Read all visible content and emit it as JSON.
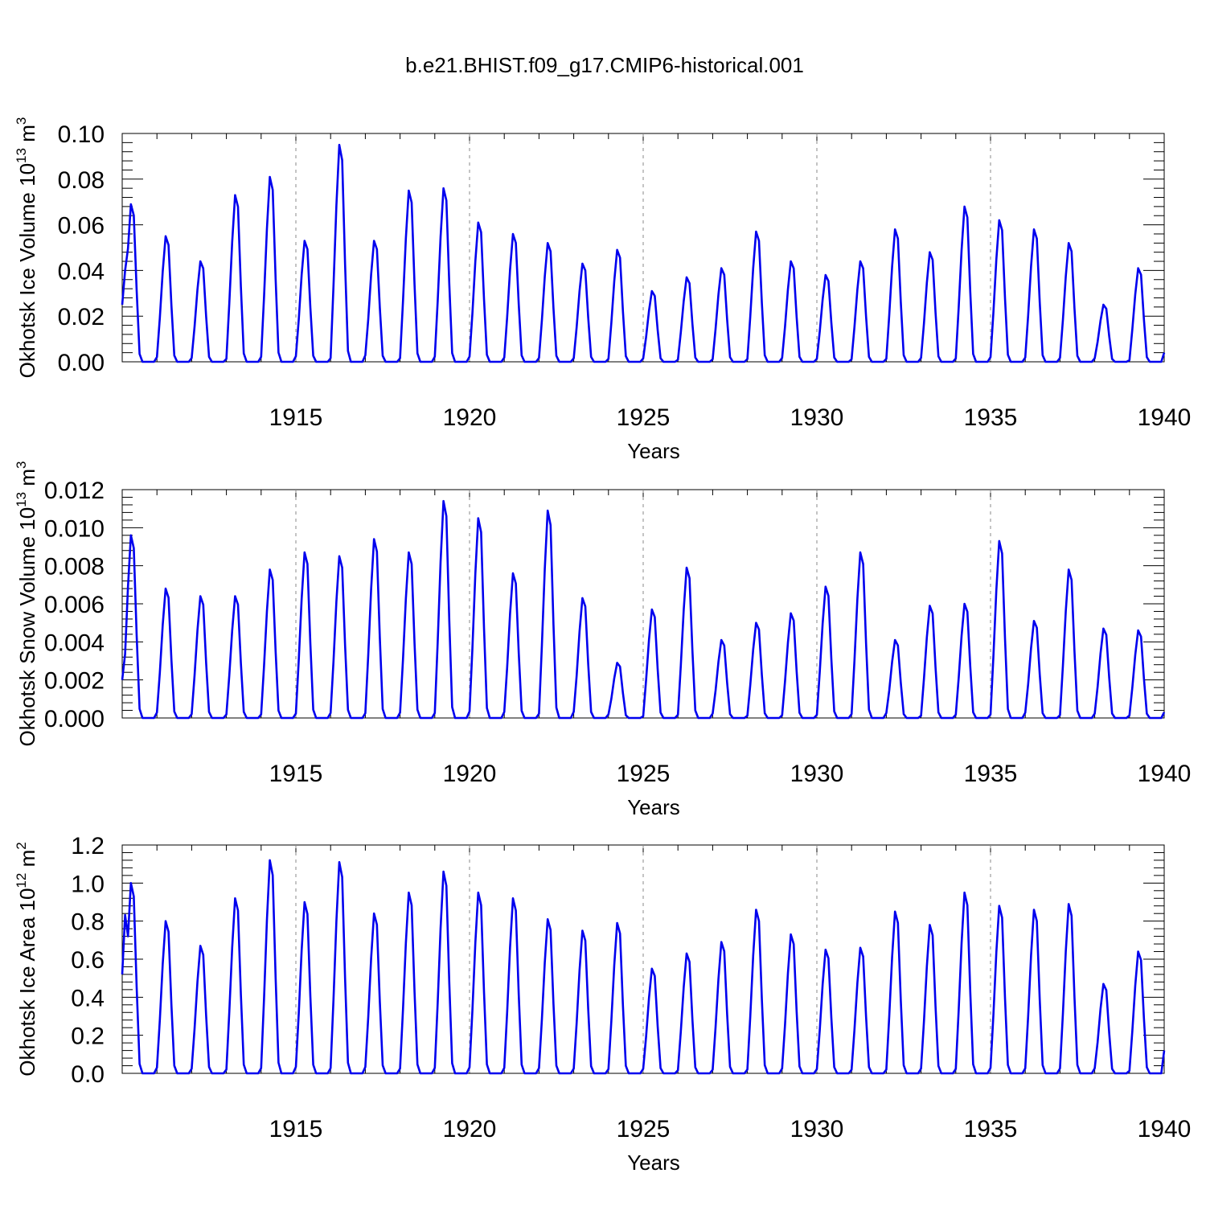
{
  "title": "b.e21.BHIST.f09_g17.CMIP6-historical.001",
  "colors": {
    "series": "#0000ee",
    "axis": "#000000",
    "grid": "#888888"
  },
  "chart_data": [
    {
      "type": "line",
      "panel": "ice-volume",
      "ylabel_main": "Okhotsk Ice Volume 10",
      "ylabel_exp": "13",
      "ylabel_unit": " m",
      "ylabel_unit_exp": "3",
      "xlabel": "Years",
      "xlim": [
        1910,
        1940
      ],
      "ylim": [
        0,
        0.1
      ],
      "yticks": [
        0,
        0.02,
        0.04,
        0.06,
        0.08,
        0.1
      ],
      "yticklabels": [
        "0.00",
        "0.02",
        "0.04",
        "0.06",
        "0.08",
        "0.10"
      ],
      "xticks": [
        1915,
        1920,
        1925,
        1930,
        1935,
        1940
      ],
      "xticklabels": [
        "1915",
        "1920",
        "1925",
        "1930",
        "1935",
        "1940"
      ],
      "grid": "vertical dashed at major x ticks",
      "series": [
        {
          "name": "Okhotsk Ice Volume",
          "peaks": [
            0.069,
            0.055,
            0.044,
            0.073,
            0.081,
            0.053,
            0.095,
            0.053,
            0.075,
            0.076,
            0.061,
            0.056,
            0.052,
            0.043,
            0.049,
            0.031,
            0.037,
            0.041,
            0.057,
            0.044,
            0.038,
            0.044,
            0.058,
            0.048,
            0.068,
            0.062,
            0.058,
            0.052,
            0.025,
            0.041
          ],
          "start_value": 0.025,
          "end_value": 0.004
        }
      ]
    },
    {
      "type": "line",
      "panel": "snow-volume",
      "ylabel_main": "Okhotsk Snow Volume 10",
      "ylabel_exp": "13",
      "ylabel_unit": " m",
      "ylabel_unit_exp": "3",
      "xlabel": "Years",
      "xlim": [
        1910,
        1940
      ],
      "ylim": [
        0,
        0.012
      ],
      "yticks": [
        0,
        0.002,
        0.004,
        0.006,
        0.008,
        0.01,
        0.012
      ],
      "yticklabels": [
        "0.000",
        "0.002",
        "0.004",
        "0.006",
        "0.008",
        "0.010",
        "0.012"
      ],
      "xticks": [
        1915,
        1920,
        1925,
        1930,
        1935,
        1940
      ],
      "xticklabels": [
        "1915",
        "1920",
        "1925",
        "1930",
        "1935",
        "1940"
      ],
      "grid": "vertical dashed at major x ticks",
      "series": [
        {
          "name": "Okhotsk Snow Volume",
          "peaks": [
            0.0096,
            0.0068,
            0.0064,
            0.0064,
            0.0078,
            0.0087,
            0.0085,
            0.0094,
            0.0087,
            0.0114,
            0.0105,
            0.0076,
            0.0109,
            0.0063,
            0.0029,
            0.0057,
            0.0079,
            0.0041,
            0.005,
            0.0055,
            0.0069,
            0.0087,
            0.0041,
            0.0059,
            0.006,
            0.0093,
            0.0051,
            0.0078,
            0.0047,
            0.0046
          ],
          "start_value": 0.002,
          "end_value": 0.0003
        }
      ]
    },
    {
      "type": "line",
      "panel": "ice-area",
      "ylabel_main": "Okhotsk Ice Area 10",
      "ylabel_exp": "12",
      "ylabel_unit": " m",
      "ylabel_unit_exp": "2",
      "xlabel": "Years",
      "xlim": [
        1910,
        1940
      ],
      "ylim": [
        0,
        1.2
      ],
      "yticks": [
        0,
        0.2,
        0.4,
        0.6,
        0.8,
        1.0,
        1.2
      ],
      "yticklabels": [
        "0.0",
        "0.2",
        "0.4",
        "0.6",
        "0.8",
        "1.0",
        "1.2"
      ],
      "xticks": [
        1915,
        1920,
        1925,
        1930,
        1935,
        1940
      ],
      "xticklabels": [
        "1915",
        "1920",
        "1925",
        "1930",
        "1935",
        "1940"
      ],
      "grid": "vertical dashed at major x ticks",
      "series": [
        {
          "name": "Okhotsk Ice Area",
          "peaks": [
            1.0,
            0.8,
            0.67,
            0.92,
            1.12,
            0.9,
            1.11,
            0.84,
            0.95,
            1.06,
            0.95,
            0.92,
            0.81,
            0.75,
            0.79,
            0.55,
            0.63,
            0.69,
            0.86,
            0.73,
            0.65,
            0.66,
            0.85,
            0.78,
            0.95,
            0.88,
            0.86,
            0.89,
            0.47,
            0.64
          ],
          "start_value": 0.52,
          "end_value": 0.12
        }
      ]
    }
  ]
}
